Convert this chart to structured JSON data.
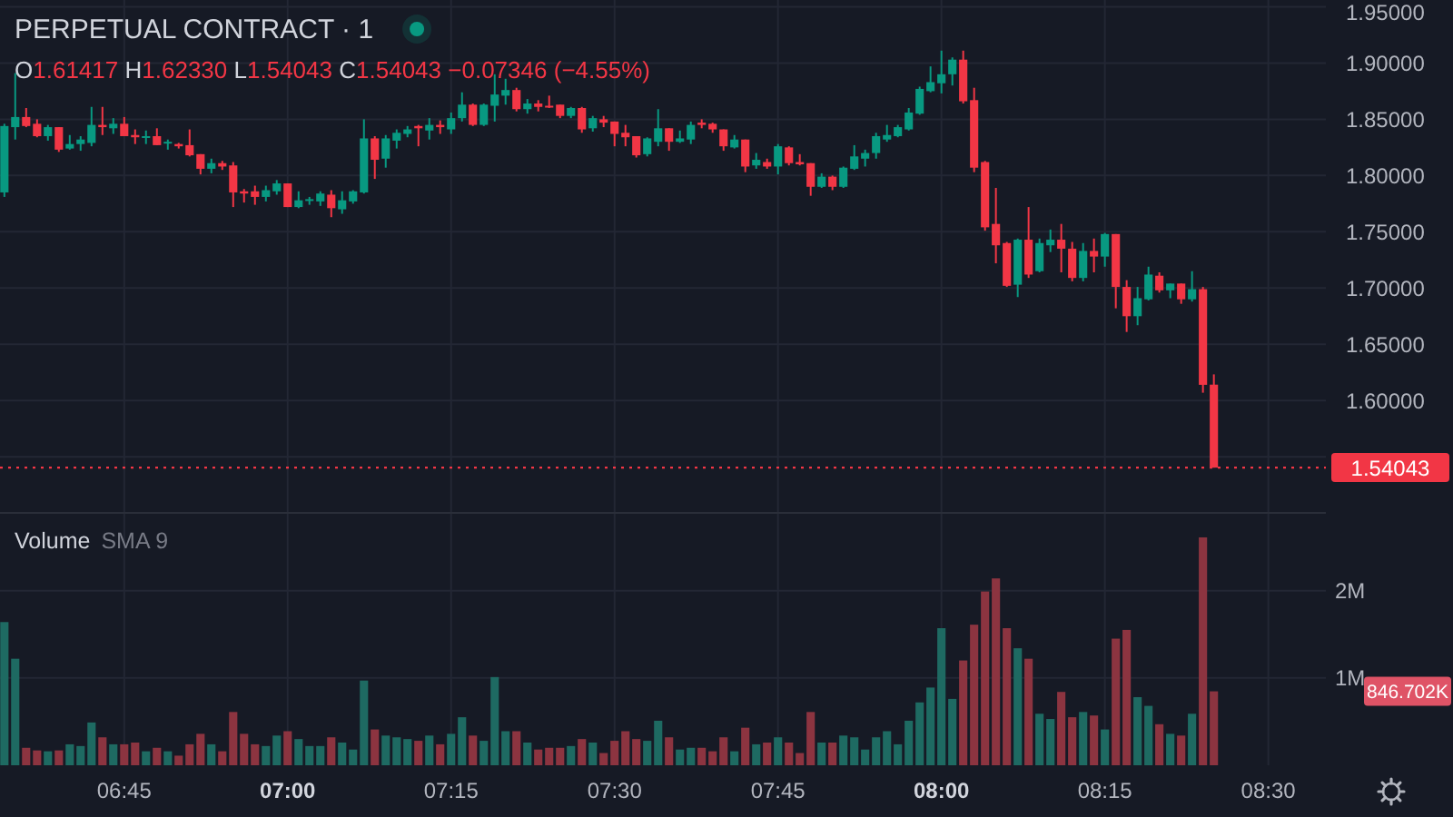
{
  "chart_data": [
    {
      "type": "candlestick",
      "title": "PERPETUAL CONTRACT · 1",
      "annotations": [
        "O1.61417 H1.62330 L1.54043 C1.54043 −0.07346 (−4.55%)"
      ],
      "x": [
        6.5667,
        6.5833,
        6.6,
        6.6167,
        6.6333,
        6.65,
        6.6667,
        6.6833,
        6.7,
        6.7167,
        6.7333,
        6.75,
        6.7667,
        6.7833,
        6.8,
        6.8167,
        6.8333,
        6.85,
        6.8667,
        6.8833,
        6.9,
        6.9167,
        6.9333,
        6.95,
        6.9667,
        6.9833,
        7,
        7.0167,
        7.0333,
        7.05,
        7.0667,
        7.0833,
        7.1,
        7.1167,
        7.1333,
        7.15,
        7.1667,
        7.1833,
        7.2,
        7.2167,
        7.2333,
        7.25,
        7.2667,
        7.2833,
        7.3,
        7.3167,
        7.3333,
        7.35,
        7.3667,
        7.3833,
        7.4,
        7.4167,
        7.4333,
        7.45,
        7.4667,
        7.4833,
        7.5,
        7.5167,
        7.5333,
        7.55,
        7.5667,
        7.5833,
        7.6,
        7.6167,
        7.6333,
        7.65,
        7.6667,
        7.6833,
        7.7,
        7.7167,
        7.7333,
        7.75,
        7.7667,
        7.7833,
        7.8,
        7.8167,
        7.8333,
        7.85,
        7.8667,
        7.8833,
        7.9,
        7.9167,
        7.9333,
        7.95,
        7.9667,
        7.9833,
        8,
        8.0167,
        8.0333,
        8.05,
        8.0667,
        8.0833,
        8.1,
        8.1167,
        8.1333,
        8.15,
        8.1667,
        8.1833,
        8.2,
        8.2167,
        8.2333,
        8.25,
        8.2667,
        8.2833,
        8.3,
        8.3167,
        8.3333,
        8.35,
        8.3667,
        8.3833,
        8.4,
        8.4167
      ],
      "ohlc": [
        [
          1.785,
          1.846,
          1.781,
          1.844
        ],
        [
          1.843,
          1.891,
          1.832,
          1.852
        ],
        [
          1.852,
          1.86,
          1.843,
          1.844
        ],
        [
          1.846,
          1.85,
          1.834,
          1.835
        ],
        [
          1.835,
          1.845,
          1.831,
          1.843
        ],
        [
          1.843,
          1.843,
          1.821,
          1.823
        ],
        [
          1.824,
          1.836,
          1.823,
          1.828
        ],
        [
          1.828,
          1.835,
          1.822,
          1.832
        ],
        [
          1.829,
          1.861,
          1.826,
          1.845
        ],
        [
          1.845,
          1.861,
          1.836,
          1.843
        ],
        [
          1.842,
          1.851,
          1.837,
          1.846
        ],
        [
          1.846,
          1.852,
          1.835,
          1.835
        ],
        [
          1.836,
          1.841,
          1.828,
          1.834
        ],
        [
          1.834,
          1.84,
          1.828,
          1.835
        ],
        [
          1.835,
          1.842,
          1.827,
          1.827
        ],
        [
          1.829,
          1.832,
          1.823,
          1.83
        ],
        [
          1.828,
          1.829,
          1.824,
          1.826
        ],
        [
          1.827,
          1.841,
          1.817,
          1.818
        ],
        [
          1.819,
          1.819,
          1.801,
          1.806
        ],
        [
          1.806,
          1.815,
          1.802,
          1.811
        ],
        [
          1.811,
          1.813,
          1.805,
          1.808
        ],
        [
          1.809,
          1.812,
          1.772,
          1.785
        ],
        [
          1.786,
          1.788,
          1.776,
          1.784
        ],
        [
          1.786,
          1.791,
          1.774,
          1.781
        ],
        [
          1.781,
          1.791,
          1.777,
          1.787
        ],
        [
          1.786,
          1.796,
          1.783,
          1.793
        ],
        [
          1.793,
          1.793,
          1.772,
          1.772
        ],
        [
          1.772,
          1.786,
          1.771,
          1.778
        ],
        [
          1.778,
          1.781,
          1.774,
          1.779
        ],
        [
          1.777,
          1.786,
          1.773,
          1.784
        ],
        [
          1.783,
          1.787,
          1.763,
          1.771
        ],
        [
          1.77,
          1.786,
          1.766,
          1.778
        ],
        [
          1.777,
          1.787,
          1.775,
          1.786
        ],
        [
          1.785,
          1.85,
          1.784,
          1.833
        ],
        [
          1.833,
          1.835,
          1.797,
          1.814
        ],
        [
          1.815,
          1.836,
          1.807,
          1.833
        ],
        [
          1.831,
          1.841,
          1.824,
          1.838
        ],
        [
          1.837,
          1.844,
          1.834,
          1.841
        ],
        [
          1.844,
          1.845,
          1.826,
          1.842
        ],
        [
          1.84,
          1.851,
          1.832,
          1.845
        ],
        [
          1.845,
          1.849,
          1.837,
          1.843
        ],
        [
          1.841,
          1.856,
          1.837,
          1.851
        ],
        [
          1.851,
          1.874,
          1.848,
          1.863
        ],
        [
          1.863,
          1.864,
          1.844,
          1.845
        ],
        [
          1.845,
          1.864,
          1.844,
          1.863
        ],
        [
          1.862,
          1.89,
          1.848,
          1.872
        ],
        [
          1.871,
          1.886,
          1.863,
          1.876
        ],
        [
          1.876,
          1.878,
          1.857,
          1.859
        ],
        [
          1.859,
          1.868,
          1.855,
          1.864
        ],
        [
          1.864,
          1.867,
          1.857,
          1.861
        ],
        [
          1.862,
          1.871,
          1.86,
          1.861
        ],
        [
          1.863,
          1.863,
          1.851,
          1.853
        ],
        [
          1.853,
          1.861,
          1.851,
          1.86
        ],
        [
          1.86,
          1.861,
          1.838,
          1.841
        ],
        [
          1.842,
          1.853,
          1.839,
          1.851
        ],
        [
          1.85,
          1.853,
          1.843,
          1.847
        ],
        [
          1.848,
          1.848,
          1.826,
          1.837
        ],
        [
          1.838,
          1.845,
          1.826,
          1.834
        ],
        [
          1.835,
          1.835,
          1.816,
          1.818
        ],
        [
          1.819,
          1.834,
          1.817,
          1.833
        ],
        [
          1.83,
          1.859,
          1.826,
          1.842
        ],
        [
          1.842,
          1.842,
          1.822,
          1.83
        ],
        [
          1.83,
          1.84,
          1.829,
          1.833
        ],
        [
          1.832,
          1.848,
          1.828,
          1.845
        ],
        [
          1.847,
          1.85,
          1.842,
          1.845
        ],
        [
          1.846,
          1.847,
          1.838,
          1.841
        ],
        [
          1.841,
          1.841,
          1.822,
          1.826
        ],
        [
          1.825,
          1.836,
          1.824,
          1.832
        ],
        [
          1.832,
          1.832,
          1.803,
          1.808
        ],
        [
          1.809,
          1.82,
          1.806,
          1.814
        ],
        [
          1.812,
          1.815,
          1.806,
          1.808
        ],
        [
          1.808,
          1.828,
          1.801,
          1.826
        ],
        [
          1.825,
          1.826,
          1.809,
          1.811
        ],
        [
          1.812,
          1.819,
          1.809,
          1.81
        ],
        [
          1.811,
          1.811,
          1.782,
          1.79
        ],
        [
          1.79,
          1.802,
          1.789,
          1.799
        ],
        [
          1.799,
          1.8,
          1.787,
          1.79
        ],
        [
          1.79,
          1.808,
          1.789,
          1.807
        ],
        [
          1.806,
          1.827,
          1.805,
          1.817
        ],
        [
          1.815,
          1.823,
          1.808,
          1.82
        ],
        [
          1.82,
          1.838,
          1.815,
          1.835
        ],
        [
          1.832,
          1.845,
          1.83,
          1.836
        ],
        [
          1.835,
          1.845,
          1.834,
          1.843
        ],
        [
          1.841,
          1.86,
          1.84,
          1.856
        ],
        [
          1.855,
          1.879,
          1.854,
          1.877
        ],
        [
          1.875,
          1.897,
          1.874,
          1.883
        ],
        [
          1.882,
          1.911,
          1.873,
          1.89
        ],
        [
          1.89,
          1.905,
          1.88,
          1.903
        ],
        [
          1.903,
          1.911,
          1.864,
          1.866
        ],
        [
          1.867,
          1.878,
          1.803,
          1.807
        ],
        [
          1.812,
          1.813,
          1.751,
          1.754
        ],
        [
          1.757,
          1.789,
          1.722,
          1.738
        ],
        [
          1.74,
          1.741,
          1.701,
          1.702
        ],
        [
          1.703,
          1.744,
          1.692,
          1.743
        ],
        [
          1.743,
          1.772,
          1.709,
          1.712
        ],
        [
          1.715,
          1.744,
          1.714,
          1.74
        ],
        [
          1.738,
          1.752,
          1.732,
          1.743
        ],
        [
          1.743,
          1.757,
          1.714,
          1.735
        ],
        [
          1.735,
          1.741,
          1.706,
          1.709
        ],
        [
          1.709,
          1.74,
          1.706,
          1.733
        ],
        [
          1.733,
          1.744,
          1.714,
          1.728
        ],
        [
          1.728,
          1.749,
          1.719,
          1.748
        ],
        [
          1.748,
          1.748,
          1.682,
          1.701
        ],
        [
          1.701,
          1.707,
          1.661,
          1.675
        ],
        [
          1.675,
          1.701,
          1.667,
          1.691
        ],
        [
          1.69,
          1.719,
          1.689,
          1.712
        ],
        [
          1.711,
          1.714,
          1.696,
          1.698
        ],
        [
          1.698,
          1.704,
          1.691,
          1.704
        ],
        [
          1.704,
          1.704,
          1.686,
          1.69
        ],
        [
          1.69,
          1.715,
          1.688,
          1.699
        ],
        [
          1.699,
          1.701,
          1.607,
          1.614
        ],
        [
          1.61417,
          1.6233,
          1.54043,
          1.54043
        ]
      ],
      "colors": [
        "#089981",
        "#089981",
        "#f23645",
        "#f23645",
        "#089981",
        "#f23645",
        "#089981",
        "#089981",
        "#089981",
        "#f23645",
        "#089981",
        "#f23645",
        "#f23645",
        "#089981",
        "#f23645",
        "#089981",
        "#f23645",
        "#f23645",
        "#f23645",
        "#089981",
        "#f23645",
        "#f23645",
        "#f23645",
        "#f23645",
        "#089981",
        "#089981",
        "#f23645",
        "#089981",
        "#089981",
        "#089981",
        "#f23645",
        "#089981",
        "#089981",
        "#089981",
        "#f23645",
        "#089981",
        "#089981",
        "#089981",
        "#f23645",
        "#089981",
        "#f23645",
        "#089981",
        "#089981",
        "#f23645",
        "#089981",
        "#089981",
        "#089981",
        "#f23645",
        "#089981",
        "#f23645",
        "#f23645",
        "#f23645",
        "#089981",
        "#f23645",
        "#089981",
        "#f23645",
        "#f23645",
        "#f23645",
        "#f23645",
        "#089981",
        "#089981",
        "#f23645",
        "#089981",
        "#089981",
        "#f23645",
        "#f23645",
        "#f23645",
        "#089981",
        "#f23645",
        "#089981",
        "#f23645",
        "#089981",
        "#f23645",
        "#f23645",
        "#f23645",
        "#089981",
        "#f23645",
        "#089981",
        "#089981",
        "#089981",
        "#089981",
        "#089981",
        "#089981",
        "#089981",
        "#089981",
        "#089981",
        "#089981",
        "#089981",
        "#f23645",
        "#f23645",
        "#f23645",
        "#f23645",
        "#f23645",
        "#089981",
        "#f23645",
        "#089981",
        "#089981",
        "#f23645",
        "#f23645",
        "#089981",
        "#f23645",
        "#089981",
        "#f23645",
        "#f23645",
        "#089981",
        "#089981",
        "#f23645",
        "#089981",
        "#f23645",
        "#089981",
        "#f23645",
        "#f23645"
      ],
      "xlim": [
        6.56,
        8.588
      ],
      "xticks": [
        {
          "value": 6.75,
          "label": null
        },
        {
          "value": 7,
          "label": null
        },
        {
          "value": 7.25,
          "label": null
        },
        {
          "value": 7.5,
          "label": null
        },
        {
          "value": 7.75,
          "label": null
        },
        {
          "value": 8,
          "label": null
        },
        {
          "value": 8.25,
          "label": null
        },
        {
          "value": 8.5,
          "label": null
        }
      ],
      "ylim": [
        1.501,
        1.956
      ],
      "yticks": [
        {
          "value": 1.55,
          "label": null
        },
        {
          "value": 1.6,
          "label": "1.60000"
        },
        {
          "value": 1.65,
          "label": "1.65000"
        },
        {
          "value": 1.7,
          "label": "1.70000"
        },
        {
          "value": 1.75,
          "label": "1.75000"
        },
        {
          "value": 1.8,
          "label": "1.80000"
        },
        {
          "value": 1.85,
          "label": "1.85000"
        },
        {
          "value": 1.9,
          "label": "1.90000"
        },
        {
          "value": 1.95,
          "label": "1.95000"
        }
      ],
      "grid": true,
      "tick_labels": "y",
      "ref_lines": [
        {
          "axis": "y",
          "value": 1.54043,
          "label": "1.54043",
          "color": "#f23645",
          "line_style": "dotted"
        }
      ]
    },
    {
      "type": "bar",
      "title": "Volume",
      "subtitle": "SMA 9",
      "x": [
        6.5667,
        6.5833,
        6.6,
        6.6167,
        6.6333,
        6.65,
        6.6667,
        6.6833,
        6.7,
        6.7167,
        6.7333,
        6.75,
        6.7667,
        6.7833,
        6.8,
        6.8167,
        6.8333,
        6.85,
        6.8667,
        6.8833,
        6.9,
        6.9167,
        6.9333,
        6.95,
        6.9667,
        6.9833,
        7,
        7.0167,
        7.0333,
        7.05,
        7.0667,
        7.0833,
        7.1,
        7.1167,
        7.1333,
        7.15,
        7.1667,
        7.1833,
        7.2,
        7.2167,
        7.2333,
        7.25,
        7.2667,
        7.2833,
        7.3,
        7.3167,
        7.3333,
        7.35,
        7.3667,
        7.3833,
        7.4,
        7.4167,
        7.4333,
        7.45,
        7.4667,
        7.4833,
        7.5,
        7.5167,
        7.5333,
        7.55,
        7.5667,
        7.5833,
        7.6,
        7.6167,
        7.6333,
        7.65,
        7.6667,
        7.6833,
        7.7,
        7.7167,
        7.7333,
        7.75,
        7.7667,
        7.7833,
        7.8,
        7.8167,
        7.8333,
        7.85,
        7.8667,
        7.8833,
        7.9,
        7.9167,
        7.9333,
        7.95,
        7.9667,
        7.9833,
        8,
        8.0167,
        8.0333,
        8.05,
        8.0667,
        8.0833,
        8.1,
        8.1167,
        8.1333,
        8.15,
        8.1667,
        8.1833,
        8.2,
        8.2167,
        8.2333,
        8.25,
        8.2667,
        8.2833,
        8.3,
        8.3167,
        8.3333,
        8.35,
        8.3667,
        8.3833,
        8.4,
        8.4167
      ],
      "values": [
        1640000,
        1220000,
        200000,
        170000,
        160000,
        170000,
        240000,
        220000,
        490000,
        320000,
        240000,
        240000,
        260000,
        160000,
        200000,
        160000,
        110000,
        240000,
        360000,
        240000,
        160000,
        610000,
        360000,
        240000,
        220000,
        340000,
        390000,
        300000,
        220000,
        220000,
        320000,
        260000,
        180000,
        970000,
        410000,
        340000,
        320000,
        300000,
        280000,
        340000,
        240000,
        360000,
        550000,
        340000,
        280000,
        1010000,
        390000,
        390000,
        260000,
        180000,
        200000,
        200000,
        220000,
        300000,
        260000,
        140000,
        280000,
        390000,
        300000,
        280000,
        510000,
        320000,
        180000,
        200000,
        200000,
        160000,
        320000,
        160000,
        430000,
        240000,
        260000,
        320000,
        260000,
        140000,
        610000,
        260000,
        260000,
        340000,
        320000,
        180000,
        320000,
        390000,
        240000,
        510000,
        720000,
        890000,
        1570000,
        760000,
        1200000,
        1610000,
        1990000,
        2140000,
        1570000,
        1340000,
        1220000,
        590000,
        530000,
        840000,
        550000,
        610000,
        570000,
        410000,
        1450000,
        1550000,
        780000,
        680000,
        470000,
        360000,
        340000,
        590000,
        2610000,
        846702
      ],
      "colors": [
        "#1e6a62",
        "#1e6a62",
        "#8c3440",
        "#8c3440",
        "#1e6a62",
        "#8c3440",
        "#1e6a62",
        "#1e6a62",
        "#1e6a62",
        "#8c3440",
        "#1e6a62",
        "#8c3440",
        "#8c3440",
        "#1e6a62",
        "#8c3440",
        "#1e6a62",
        "#8c3440",
        "#8c3440",
        "#8c3440",
        "#1e6a62",
        "#8c3440",
        "#8c3440",
        "#8c3440",
        "#8c3440",
        "#1e6a62",
        "#1e6a62",
        "#8c3440",
        "#1e6a62",
        "#1e6a62",
        "#1e6a62",
        "#8c3440",
        "#1e6a62",
        "#1e6a62",
        "#1e6a62",
        "#8c3440",
        "#1e6a62",
        "#1e6a62",
        "#1e6a62",
        "#8c3440",
        "#1e6a62",
        "#8c3440",
        "#1e6a62",
        "#1e6a62",
        "#8c3440",
        "#1e6a62",
        "#1e6a62",
        "#1e6a62",
        "#8c3440",
        "#1e6a62",
        "#8c3440",
        "#8c3440",
        "#8c3440",
        "#1e6a62",
        "#8c3440",
        "#1e6a62",
        "#8c3440",
        "#8c3440",
        "#8c3440",
        "#8c3440",
        "#1e6a62",
        "#1e6a62",
        "#8c3440",
        "#1e6a62",
        "#1e6a62",
        "#8c3440",
        "#8c3440",
        "#8c3440",
        "#1e6a62",
        "#8c3440",
        "#1e6a62",
        "#8c3440",
        "#1e6a62",
        "#8c3440",
        "#8c3440",
        "#8c3440",
        "#1e6a62",
        "#8c3440",
        "#1e6a62",
        "#1e6a62",
        "#1e6a62",
        "#1e6a62",
        "#1e6a62",
        "#1e6a62",
        "#1e6a62",
        "#1e6a62",
        "#1e6a62",
        "#1e6a62",
        "#1e6a62",
        "#8c3440",
        "#8c3440",
        "#8c3440",
        "#8c3440",
        "#8c3440",
        "#1e6a62",
        "#8c3440",
        "#1e6a62",
        "#1e6a62",
        "#8c3440",
        "#8c3440",
        "#1e6a62",
        "#8c3440",
        "#1e6a62",
        "#8c3440",
        "#8c3440",
        "#1e6a62",
        "#1e6a62",
        "#8c3440",
        "#1e6a62",
        "#8c3440",
        "#1e6a62",
        "#8c3440",
        "#8c3440"
      ],
      "xlim": [
        6.56,
        8.588
      ],
      "xticks": [
        {
          "value": 6.75,
          "label": "06:45"
        },
        {
          "value": 7,
          "label": "07:00"
        },
        {
          "value": 7.25,
          "label": "07:15"
        },
        {
          "value": 7.5,
          "label": "07:30"
        },
        {
          "value": 7.75,
          "label": "07:45"
        },
        {
          "value": 8,
          "label": "08:00"
        },
        {
          "value": 8.25,
          "label": "08:15"
        },
        {
          "value": 8.5,
          "label": "08:30"
        }
      ],
      "ylim": [
        0,
        2880000
      ],
      "yticks": [
        {
          "value": 1000000,
          "label": "1M"
        },
        {
          "value": 2000000,
          "label": "2M"
        }
      ],
      "grid": true,
      "annotations": [
        "846.702K"
      ]
    }
  ]
}
